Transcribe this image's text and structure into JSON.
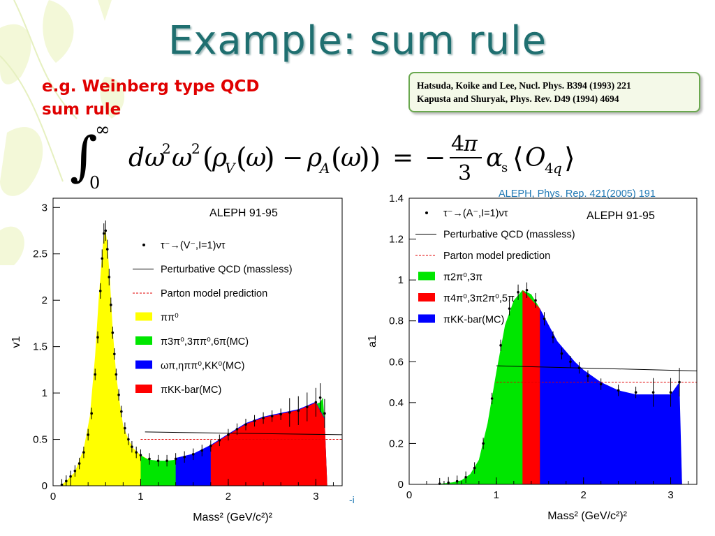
{
  "slide": {
    "title": "Example: sum rule",
    "rule_label": "e.g. Weinberg type QCD\nsum rule",
    "references": [
      "Hatsuda, Koike and Lee, Nucl. Phys.  B394 (1993) 221",
      "Kapusta and Shuryak, Phys. Rev. D49 (1994) 4694"
    ],
    "aleph_reference": "ALEPH, Phys. Rep. 421(2005) 191",
    "stray_mark": "-i",
    "colors": {
      "title": "#1f6f70",
      "rule_label": "#e00000",
      "ref_box_border": "#6aa84f",
      "ref_box_fill": "#f4f9e8",
      "aleph_ref": "#1f78b4"
    }
  },
  "chart_data": [
    {
      "type": "area",
      "title": "ALEPH 91-95",
      "ylabel": "v1",
      "xlabel": "Mass² (GeV/c²)²",
      "xlim": [
        0,
        3.3
      ],
      "ylim": [
        0,
        3.1
      ],
      "x_ticks": [
        0,
        1,
        2,
        3
      ],
      "y_ticks": [
        0,
        0.5,
        1,
        1.5,
        2,
        2.5,
        3
      ],
      "legend": [
        {
          "label": "τ⁻→(V⁻,I=1)ντ",
          "kind": "marker",
          "color": "#000000"
        },
        {
          "label": "Perturbative QCD (massless)",
          "kind": "line",
          "color": "#000000"
        },
        {
          "label": "Parton model prediction",
          "kind": "dashed",
          "color": "#e00000"
        },
        {
          "label": "ππ⁰",
          "kind": "fill",
          "color": "#ffff00"
        },
        {
          "label": "π3π⁰,3ππ⁰,6π(MC)",
          "kind": "fill",
          "color": "#00e600"
        },
        {
          "label": "ωπ,ηππ⁰,KK⁰(MC)",
          "kind": "fill",
          "color": "#0000ff"
        },
        {
          "label": "πKK-bar(MC)",
          "kind": "fill",
          "color": "#ff0000"
        }
      ],
      "series": [
        {
          "name": "ππ⁰",
          "color": "#ffff00",
          "x": [
            0.08,
            0.15,
            0.25,
            0.35,
            0.42,
            0.48,
            0.52,
            0.56,
            0.58,
            0.6,
            0.62,
            0.65,
            0.68,
            0.72,
            0.76,
            0.8,
            0.86,
            0.92,
            1.0,
            1.1,
            1.3,
            1.6,
            2.0,
            2.5,
            3.0,
            3.13
          ],
          "values": [
            0,
            0.05,
            0.15,
            0.4,
            0.75,
            1.4,
            2.0,
            2.5,
            2.72,
            2.75,
            2.6,
            2.2,
            1.7,
            1.2,
            0.9,
            0.65,
            0.5,
            0.4,
            0.33,
            0.28,
            0.22,
            0.15,
            0.09,
            0.05,
            0.02,
            0
          ]
        },
        {
          "name": "π3π⁰,3ππ⁰,6π(MC)",
          "color": "#00e600",
          "x": [
            1.0,
            1.05,
            1.1,
            1.2,
            1.3,
            1.4,
            1.5,
            1.6,
            1.7,
            1.8,
            1.9,
            2.0,
            2.1,
            2.2,
            2.3,
            2.4,
            2.5,
            2.6,
            2.7,
            2.8,
            2.9,
            3.0,
            3.05,
            3.08,
            3.1,
            3.13
          ],
          "values": [
            0.33,
            0.3,
            0.28,
            0.27,
            0.27,
            0.28,
            0.3,
            0.33,
            0.37,
            0.42,
            0.48,
            0.54,
            0.6,
            0.65,
            0.69,
            0.72,
            0.74,
            0.76,
            0.78,
            0.8,
            0.84,
            0.88,
            0.9,
            0.95,
            0.7,
            0
          ]
        },
        {
          "name": "ωπ,ηππ⁰,KK⁰(MC)",
          "color": "#0000ff",
          "x": [
            1.4,
            1.6,
            1.8,
            2.0,
            2.2,
            2.4,
            2.6,
            2.8,
            3.0,
            3.1,
            3.13
          ],
          "values": [
            0.3,
            0.345,
            0.44,
            0.56,
            0.675,
            0.745,
            0.785,
            0.825,
            0.905,
            0.73,
            0
          ]
        },
        {
          "name": "πKK-bar(MC)",
          "color": "#ff0000",
          "x": [
            1.8,
            2.0,
            2.2,
            2.4,
            2.6,
            2.8,
            3.0,
            3.1,
            3.13
          ],
          "values": [
            0.43,
            0.55,
            0.665,
            0.735,
            0.775,
            0.815,
            0.895,
            0.72,
            0
          ]
        },
        {
          "name": "τ⁻→(V⁻,I=1)ντ",
          "kind": "data",
          "x": [
            0.1,
            0.15,
            0.2,
            0.25,
            0.3,
            0.35,
            0.4,
            0.44,
            0.48,
            0.51,
            0.54,
            0.56,
            0.58,
            0.6,
            0.62,
            0.64,
            0.66,
            0.68,
            0.7,
            0.72,
            0.75,
            0.78,
            0.82,
            0.86,
            0.9,
            0.95,
            1.0,
            1.1,
            1.2,
            1.3,
            1.4,
            1.5,
            1.6,
            1.7,
            1.8,
            1.9,
            2.0,
            2.1,
            2.2,
            2.3,
            2.4,
            2.5,
            2.6,
            2.7,
            2.8,
            2.9,
            3.0,
            3.05,
            3.1
          ],
          "values": [
            0.01,
            0.05,
            0.1,
            0.16,
            0.24,
            0.36,
            0.55,
            0.78,
            1.2,
            1.6,
            2.1,
            2.45,
            2.72,
            2.75,
            2.55,
            2.25,
            1.95,
            1.65,
            1.42,
            1.2,
            0.98,
            0.8,
            0.62,
            0.5,
            0.42,
            0.36,
            0.33,
            0.29,
            0.27,
            0.27,
            0.29,
            0.31,
            0.34,
            0.38,
            0.43,
            0.49,
            0.55,
            0.61,
            0.66,
            0.7,
            0.73,
            0.75,
            0.77,
            0.79,
            0.81,
            0.85,
            0.9,
            0.95,
            0.78
          ]
        },
        {
          "name": "Perturbative QCD (massless)",
          "kind": "line",
          "x": [
            1.05,
            3.3
          ],
          "values": [
            0.58,
            0.55
          ]
        },
        {
          "name": "Parton model prediction",
          "kind": "dashed",
          "x": [
            1.0,
            3.3
          ],
          "values": [
            0.5,
            0.5
          ]
        }
      ]
    },
    {
      "type": "area",
      "title": "ALEPH 91-95",
      "ylabel": "a1",
      "xlabel": "Mass² (GeV/c²)²",
      "xlim": [
        0,
        3.3
      ],
      "ylim": [
        0,
        1.4
      ],
      "x_ticks": [
        0,
        1,
        2,
        3
      ],
      "y_ticks": [
        0,
        0.2,
        0.4,
        0.6,
        0.8,
        1,
        1.2,
        1.4
      ],
      "legend": [
        {
          "label": "τ⁻→(A⁻,I=1)ντ",
          "kind": "marker",
          "color": "#000000"
        },
        {
          "label": "Perturbative QCD (massless)",
          "kind": "line",
          "color": "#000000"
        },
        {
          "label": "Parton model prediction",
          "kind": "dashed",
          "color": "#e00000"
        },
        {
          "label": "π2π⁰,3π",
          "kind": "fill",
          "color": "#00e600"
        },
        {
          "label": "π4π⁰,3π2π⁰,5π",
          "kind": "fill",
          "color": "#ff0000"
        },
        {
          "label": "πKK-bar(MC)",
          "kind": "fill",
          "color": "#0000ff"
        }
      ],
      "series": [
        {
          "name": "π2π⁰,3π",
          "color": "#00e600",
          "x": [
            0.3,
            0.4,
            0.5,
            0.6,
            0.7,
            0.8,
            0.9,
            1.0,
            1.1,
            1.2,
            1.3,
            1.4,
            1.5,
            1.6,
            1.7,
            1.8,
            2.0,
            2.2,
            2.4,
            2.6,
            2.8,
            3.0,
            3.1,
            3.13
          ],
          "values": [
            0,
            0.005,
            0.01,
            0.02,
            0.05,
            0.12,
            0.3,
            0.55,
            0.78,
            0.9,
            0.95,
            0.93,
            0.86,
            0.76,
            0.66,
            0.55,
            0.43,
            0.34,
            0.28,
            0.24,
            0.18,
            0.12,
            0.1,
            0
          ]
        },
        {
          "name": "π4π⁰,3π2π⁰,5π",
          "color": "#ff0000",
          "x": [
            1.3,
            1.5,
            1.7,
            1.8,
            2.0,
            2.2,
            2.4,
            2.6,
            2.8,
            3.0,
            3.1,
            3.13
          ],
          "values": [
            0.95,
            0.86,
            0.69,
            0.62,
            0.51,
            0.44,
            0.4,
            0.39,
            0.39,
            0.39,
            0.4,
            0
          ]
        },
        {
          "name": "πKK-bar(MC)",
          "color": "#0000ff",
          "x": [
            1.5,
            1.7,
            1.9,
            2.0,
            2.2,
            2.4,
            2.6,
            2.8,
            3.0,
            3.1,
            3.13
          ],
          "values": [
            0.86,
            0.7,
            0.6,
            0.56,
            0.5,
            0.46,
            0.44,
            0.44,
            0.44,
            0.5,
            0
          ]
        },
        {
          "name": "τ⁻→(A⁻,I=1)ντ",
          "kind": "data",
          "x": [
            0.35,
            0.45,
            0.55,
            0.65,
            0.75,
            0.85,
            0.95,
            1.05,
            1.15,
            1.25,
            1.35,
            1.45,
            1.55,
            1.65,
            1.75,
            1.85,
            1.95,
            2.05,
            2.2,
            2.4,
            2.6,
            2.8,
            3.0,
            3.1
          ],
          "values": [
            0.003,
            0.008,
            0.015,
            0.035,
            0.08,
            0.2,
            0.42,
            0.68,
            0.86,
            0.94,
            0.95,
            0.9,
            0.81,
            0.72,
            0.64,
            0.6,
            0.57,
            0.53,
            0.49,
            0.46,
            0.45,
            0.45,
            0.45,
            0.5
          ]
        },
        {
          "name": "Perturbative QCD (massless)",
          "kind": "line",
          "x": [
            1.0,
            3.3
          ],
          "values": [
            0.58,
            0.555
          ]
        },
        {
          "name": "Parton model prediction",
          "kind": "dashed",
          "x": [
            1.0,
            3.3
          ],
          "values": [
            0.5,
            0.5
          ]
        }
      ]
    }
  ]
}
